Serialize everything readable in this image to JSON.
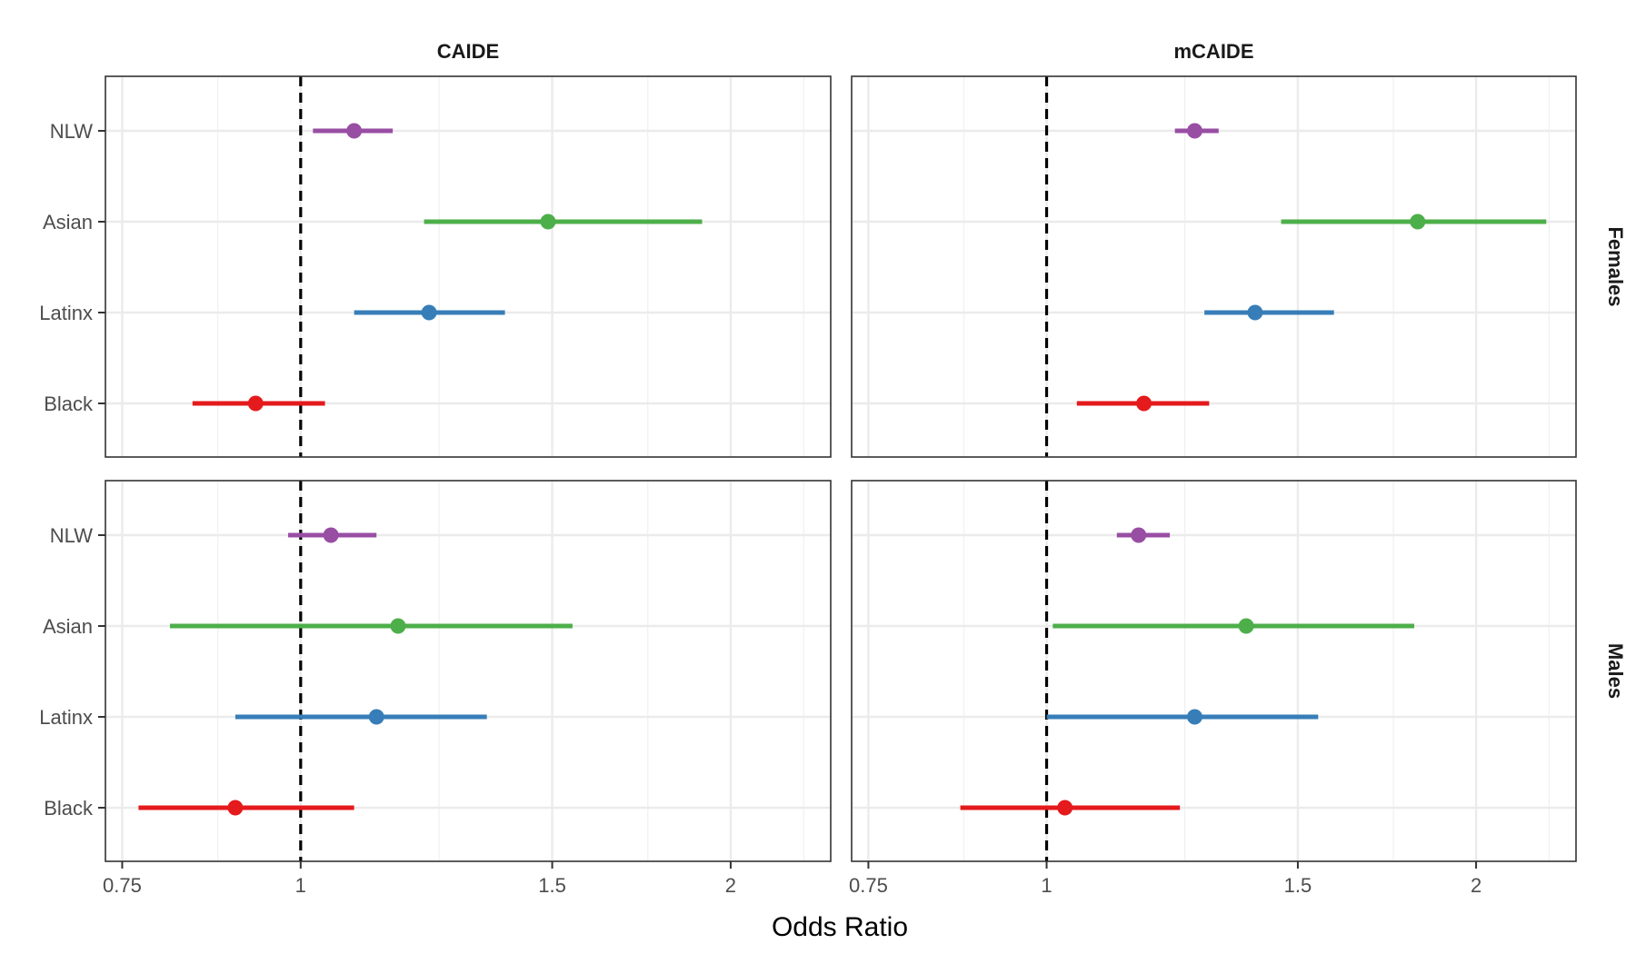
{
  "chart_data": {
    "type": "forest",
    "xlabel": "Odds Ratio",
    "x_scale": "log",
    "xlim": [
      0.73,
      2.35
    ],
    "x_ticks": [
      0.75,
      1,
      1.5,
      2
    ],
    "x_tick_labels": [
      "0.75",
      "1",
      "1.5",
      "2"
    ],
    "x_minor_ticks": [
      0.875,
      1.25,
      1.75,
      2.25
    ],
    "reference_line": 1,
    "grid": true,
    "legend": "none",
    "columns": [
      "CAIDE",
      "mCAIDE"
    ],
    "rows": [
      "Females",
      "Males"
    ],
    "categories": [
      "NLW",
      "Asian",
      "Latinx",
      "Black"
    ],
    "colors": {
      "NLW": "#984ea3",
      "Asian": "#4daf4a",
      "Latinx": "#377eb8",
      "Black": "#e41a1c"
    },
    "panels": [
      {
        "column": "CAIDE",
        "row": "Females",
        "points": [
          {
            "group": "NLW",
            "or": 1.09,
            "lo": 1.02,
            "hi": 1.16
          },
          {
            "group": "Asian",
            "or": 1.49,
            "lo": 1.22,
            "hi": 1.91
          },
          {
            "group": "Latinx",
            "or": 1.23,
            "lo": 1.09,
            "hi": 1.39
          },
          {
            "group": "Black",
            "or": 0.93,
            "lo": 0.84,
            "hi": 1.04
          }
        ]
      },
      {
        "column": "mCAIDE",
        "row": "Females",
        "points": [
          {
            "group": "NLW",
            "or": 1.27,
            "lo": 1.23,
            "hi": 1.32
          },
          {
            "group": "Asian",
            "or": 1.82,
            "lo": 1.46,
            "hi": 2.24
          },
          {
            "group": "Latinx",
            "or": 1.4,
            "lo": 1.29,
            "hi": 1.59
          },
          {
            "group": "Black",
            "or": 1.17,
            "lo": 1.05,
            "hi": 1.3
          }
        ]
      },
      {
        "column": "CAIDE",
        "row": "Males",
        "points": [
          {
            "group": "NLW",
            "or": 1.05,
            "lo": 0.98,
            "hi": 1.13
          },
          {
            "group": "Asian",
            "or": 1.17,
            "lo": 0.81,
            "hi": 1.55
          },
          {
            "group": "Latinx",
            "or": 1.13,
            "lo": 0.9,
            "hi": 1.35
          },
          {
            "group": "Black",
            "or": 0.9,
            "lo": 0.77,
            "hi": 1.09
          }
        ]
      },
      {
        "column": "mCAIDE",
        "row": "Males",
        "points": [
          {
            "group": "NLW",
            "or": 1.16,
            "lo": 1.12,
            "hi": 1.22
          },
          {
            "group": "Asian",
            "or": 1.38,
            "lo": 1.01,
            "hi": 1.81
          },
          {
            "group": "Latinx",
            "or": 1.27,
            "lo": 1.0,
            "hi": 1.55
          },
          {
            "group": "Black",
            "or": 1.03,
            "lo": 0.87,
            "hi": 1.24
          }
        ]
      }
    ]
  }
}
